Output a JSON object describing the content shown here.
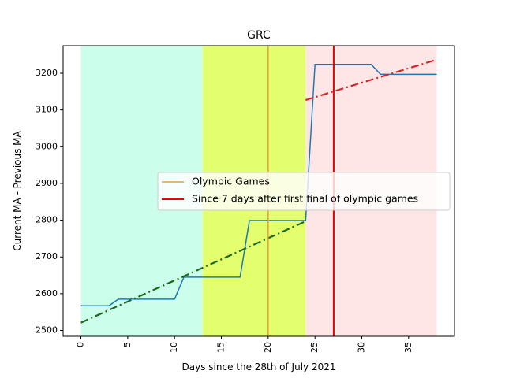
{
  "chart_data": {
    "type": "line",
    "title": "GRC",
    "xlabel": "Days since the 28th of July 2021",
    "ylabel": "Current MA - Previous MA",
    "xlim": [
      -1.9,
      39.9
    ],
    "ylim": [
      2484,
      3275
    ],
    "x_ticks": [
      0,
      5,
      10,
      15,
      20,
      25,
      30,
      35
    ],
    "y_ticks": [
      2500,
      2600,
      2700,
      2800,
      2900,
      3000,
      3100,
      3200
    ],
    "grid": false,
    "regions": [
      {
        "x0": 0,
        "x1": 13,
        "color": "#ccffeb"
      },
      {
        "x0": 13,
        "x1": 24,
        "color": "#e3ff6e"
      },
      {
        "x0": 24,
        "x1": 38,
        "color": "#ffe6e6"
      }
    ],
    "series": [
      {
        "color": "#1f77b4",
        "style": "solid",
        "points": [
          [
            0,
            2567
          ],
          [
            3,
            2567
          ],
          [
            4,
            2585
          ],
          [
            10,
            2585
          ],
          [
            11,
            2645
          ],
          [
            17,
            2645
          ],
          [
            18,
            2799
          ],
          [
            24,
            2799
          ],
          [
            25,
            3224
          ],
          [
            31,
            3224
          ],
          [
            32,
            3197
          ],
          [
            38,
            3197
          ]
        ]
      },
      {
        "color": "#1a6b1a",
        "style": "dashdot",
        "points": [
          [
            0,
            2521
          ],
          [
            24,
            2797
          ]
        ]
      },
      {
        "color": "#d62728",
        "style": "dashdot",
        "points": [
          [
            24,
            3127
          ],
          [
            38,
            3237
          ]
        ]
      }
    ],
    "vlines": [
      {
        "x": 20,
        "color": "#e0a040",
        "legend_index": 0
      },
      {
        "x": 27,
        "color": "#ee0000",
        "legend_index": 1
      }
    ],
    "legend": {
      "placement": "center-right",
      "entries": [
        {
          "label": "Olympic Games",
          "color": "#e0a040"
        },
        {
          "label": "Since 7 days after first final of olympic games",
          "color": "#ee0000"
        }
      ]
    }
  }
}
